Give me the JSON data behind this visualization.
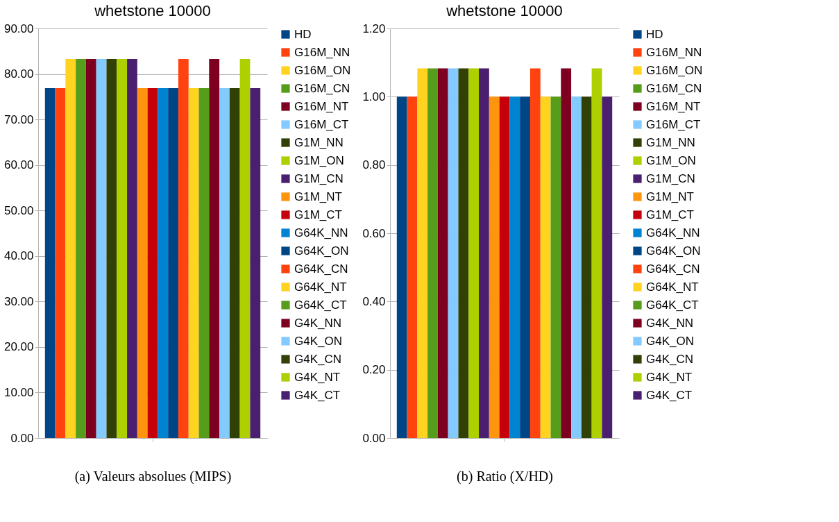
{
  "chart_data": [
    {
      "type": "bar",
      "title": "whetstone 10000",
      "xlabel": "(a) Valeurs absolues (MIPS)",
      "categories": [
        null
      ],
      "ylim": [
        0,
        90
      ],
      "yticks": [
        {
          "value": 0,
          "label": "0.00"
        },
        {
          "value": 10,
          "label": "10.00"
        },
        {
          "value": 20,
          "label": "20.00"
        },
        {
          "value": 30,
          "label": "30.00"
        },
        {
          "value": 40,
          "label": "40.00"
        },
        {
          "value": 50,
          "label": "50.00"
        },
        {
          "value": 60,
          "label": "60.00"
        },
        {
          "value": 70,
          "label": "70.00"
        },
        {
          "value": 80,
          "label": "80.00"
        },
        {
          "value": 90,
          "label": "90.00"
        }
      ],
      "grid": "y",
      "legend": "right",
      "tick_labels": "y",
      "series": [
        {
          "name": "HD",
          "color": "#004586",
          "values": [
            76.9
          ]
        },
        {
          "name": "G16M_NN",
          "color": "#ff420e",
          "values": [
            76.9
          ]
        },
        {
          "name": "G16M_ON",
          "color": "#ffd320",
          "values": [
            83.3
          ]
        },
        {
          "name": "G16M_CN",
          "color": "#579d1c",
          "values": [
            83.3
          ]
        },
        {
          "name": "G16M_NT",
          "color": "#7e0021",
          "values": [
            83.3
          ]
        },
        {
          "name": "G16M_CT",
          "color": "#83caff",
          "values": [
            83.3
          ]
        },
        {
          "name": "G1M_NN",
          "color": "#314004",
          "values": [
            83.3
          ]
        },
        {
          "name": "G1M_ON",
          "color": "#aecf00",
          "values": [
            83.3
          ]
        },
        {
          "name": "G1M_CN",
          "color": "#4b1f6f",
          "values": [
            83.3
          ]
        },
        {
          "name": "G1M_NT",
          "color": "#ff950e",
          "values": [
            76.9
          ]
        },
        {
          "name": "G1M_CT",
          "color": "#c5000b",
          "values": [
            76.9
          ]
        },
        {
          "name": "G64K_NN",
          "color": "#0084d1",
          "values": [
            76.9
          ]
        },
        {
          "name": "G64K_ON",
          "color": "#004586",
          "values": [
            76.9
          ]
        },
        {
          "name": "G64K_CN",
          "color": "#ff420e",
          "values": [
            83.3
          ]
        },
        {
          "name": "G64K_NT",
          "color": "#ffd320",
          "values": [
            76.9
          ]
        },
        {
          "name": "G64K_CT",
          "color": "#579d1c",
          "values": [
            76.9
          ]
        },
        {
          "name": "G4K_NN",
          "color": "#7e0021",
          "values": [
            83.3
          ]
        },
        {
          "name": "G4K_ON",
          "color": "#83caff",
          "values": [
            76.9
          ]
        },
        {
          "name": "G4K_CN",
          "color": "#314004",
          "values": [
            76.9
          ]
        },
        {
          "name": "G4K_NT",
          "color": "#aecf00",
          "values": [
            83.3
          ]
        },
        {
          "name": "G4K_CT",
          "color": "#4b1f6f",
          "values": [
            76.9
          ]
        }
      ]
    },
    {
      "type": "bar",
      "title": "whetstone 10000",
      "xlabel": "(b) Ratio (X/HD)",
      "categories": [
        null
      ],
      "ylim": [
        0,
        1.2
      ],
      "yticks": [
        {
          "value": 0,
          "label": "0.00"
        },
        {
          "value": 0.2,
          "label": "0.20"
        },
        {
          "value": 0.4,
          "label": "0.40"
        },
        {
          "value": 0.6,
          "label": "0.60"
        },
        {
          "value": 0.8,
          "label": "0.80"
        },
        {
          "value": 1.0,
          "label": "1.00"
        },
        {
          "value": 1.2,
          "label": "1.20"
        }
      ],
      "grid": "y",
      "legend": "right",
      "tick_labels": "y",
      "series": [
        {
          "name": "HD",
          "color": "#004586",
          "values": [
            1.0
          ]
        },
        {
          "name": "G16M_NN",
          "color": "#ff420e",
          "values": [
            1.0
          ]
        },
        {
          "name": "G16M_ON",
          "color": "#ffd320",
          "values": [
            1.083
          ]
        },
        {
          "name": "G16M_CN",
          "color": "#579d1c",
          "values": [
            1.083
          ]
        },
        {
          "name": "G16M_NT",
          "color": "#7e0021",
          "values": [
            1.083
          ]
        },
        {
          "name": "G16M_CT",
          "color": "#83caff",
          "values": [
            1.083
          ]
        },
        {
          "name": "G1M_NN",
          "color": "#314004",
          "values": [
            1.083
          ]
        },
        {
          "name": "G1M_ON",
          "color": "#aecf00",
          "values": [
            1.083
          ]
        },
        {
          "name": "G1M_CN",
          "color": "#4b1f6f",
          "values": [
            1.083
          ]
        },
        {
          "name": "G1M_NT",
          "color": "#ff950e",
          "values": [
            1.0
          ]
        },
        {
          "name": "G1M_CT",
          "color": "#c5000b",
          "values": [
            1.0
          ]
        },
        {
          "name": "G64K_NN",
          "color": "#0084d1",
          "values": [
            1.0
          ]
        },
        {
          "name": "G64K_ON",
          "color": "#004586",
          "values": [
            1.0
          ]
        },
        {
          "name": "G64K_CN",
          "color": "#ff420e",
          "values": [
            1.083
          ]
        },
        {
          "name": "G64K_NT",
          "color": "#ffd320",
          "values": [
            1.0
          ]
        },
        {
          "name": "G64K_CT",
          "color": "#579d1c",
          "values": [
            1.0
          ]
        },
        {
          "name": "G4K_NN",
          "color": "#7e0021",
          "values": [
            1.083
          ]
        },
        {
          "name": "G4K_ON",
          "color": "#83caff",
          "values": [
            1.0
          ]
        },
        {
          "name": "G4K_CN",
          "color": "#314004",
          "values": [
            1.0
          ]
        },
        {
          "name": "G4K_NT",
          "color": "#aecf00",
          "values": [
            1.083
          ]
        },
        {
          "name": "G4K_CT",
          "color": "#4b1f6f",
          "values": [
            1.0
          ]
        }
      ]
    }
  ]
}
